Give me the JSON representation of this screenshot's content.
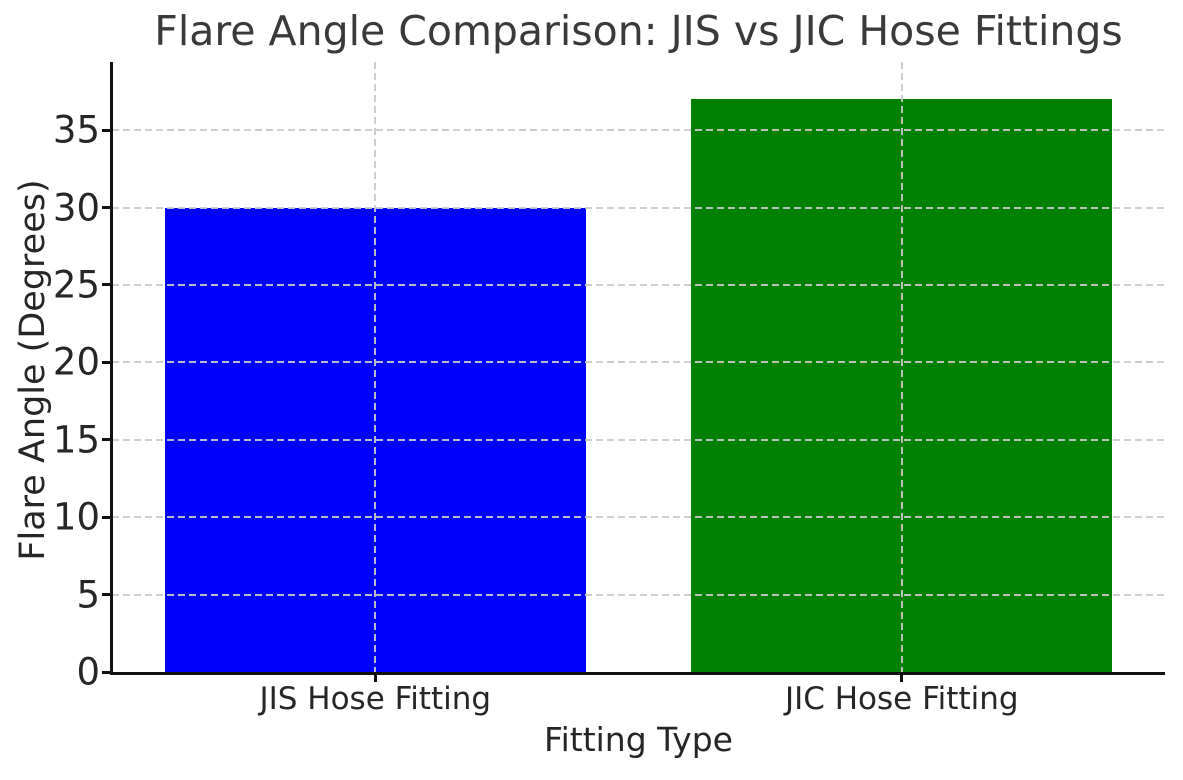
{
  "chart_data": {
    "type": "bar",
    "title": "Flare Angle Comparison: JIS vs JIC Hose Fittings",
    "xlabel": "Fitting Type",
    "ylabel": "Flare Angle (Degrees)",
    "categories": [
      "JIS Hose Fitting",
      "JIC Hose Fitting"
    ],
    "values": [
      30,
      37
    ],
    "bar_colors": [
      "#0000ff",
      "#008000"
    ],
    "yticks": [
      0,
      5,
      10,
      15,
      20,
      25,
      30,
      35
    ],
    "ylim": [
      0,
      39.4
    ],
    "bar_width_fraction": 0.4,
    "grid": "dashed",
    "grid_over_bars": true,
    "legend": "none",
    "colors": {
      "grid": "#cacaca",
      "text": "#262626",
      "title": "#3a3a3a",
      "axis": "#111111",
      "background": "#ffffff"
    }
  }
}
